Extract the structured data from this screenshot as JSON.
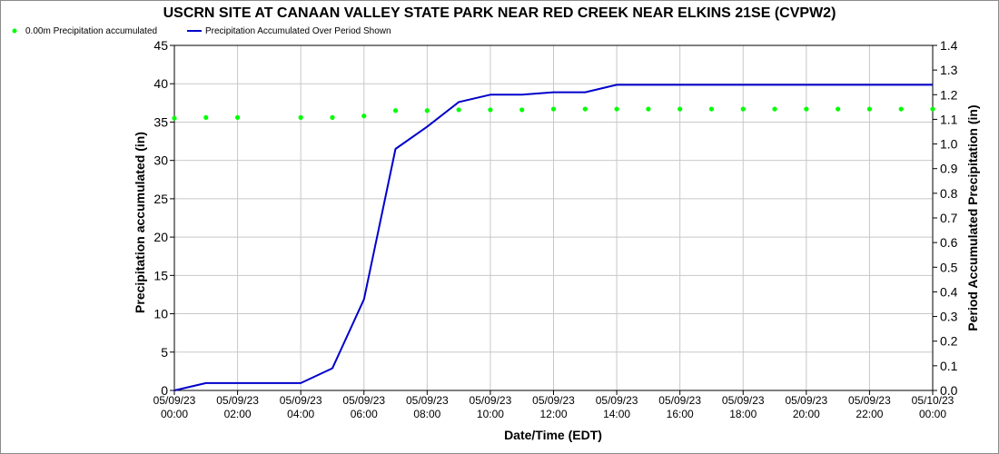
{
  "chart_data": {
    "type": "line",
    "title": "USCRN SITE AT CANAAN VALLEY STATE PARK NEAR RED CREEK NEAR ELKINS 21SE (CVPW2)",
    "xlabel": "Date/Time (EDT)",
    "ylabel_left": "Precipitation accumulated (in)",
    "ylabel_right": "Period Accumulated Precipitation (in)",
    "ylim_left": [
      0,
      45
    ],
    "ylim_right": [
      0,
      1.4
    ],
    "yticks_left": [
      "0",
      "5",
      "10",
      "15",
      "20",
      "25",
      "30",
      "35",
      "40",
      "45"
    ],
    "yticks_right": [
      "0.0",
      "0.1",
      "0.2",
      "0.3",
      "0.4",
      "0.5",
      "0.6",
      "0.7",
      "0.8",
      "0.9",
      "1.0",
      "1.1",
      "1.2",
      "1.3",
      "1.4"
    ],
    "xlim_hours": [
      0,
      24
    ],
    "xticks": [
      {
        "date": "05/09/23",
        "time": "00:00"
      },
      {
        "date": "05/09/23",
        "time": "02:00"
      },
      {
        "date": "05/09/23",
        "time": "04:00"
      },
      {
        "date": "05/09/23",
        "time": "06:00"
      },
      {
        "date": "05/09/23",
        "time": "08:00"
      },
      {
        "date": "05/09/23",
        "time": "10:00"
      },
      {
        "date": "05/09/23",
        "time": "12:00"
      },
      {
        "date": "05/09/23",
        "time": "14:00"
      },
      {
        "date": "05/09/23",
        "time": "16:00"
      },
      {
        "date": "05/09/23",
        "time": "18:00"
      },
      {
        "date": "05/09/23",
        "time": "20:00"
      },
      {
        "date": "05/09/23",
        "time": "22:00"
      },
      {
        "date": "05/10/23",
        "time": "00:00"
      }
    ],
    "grid": true,
    "legend_position": "top-left",
    "series": [
      {
        "name": "0.00m Precipitation accumulated",
        "axis": "left",
        "style": "points",
        "color": "#00ff00",
        "x_hours": [
          0,
          1,
          2,
          4,
          5,
          6,
          7,
          8,
          9,
          10,
          11,
          12,
          13,
          14,
          15,
          16,
          17,
          18,
          19,
          20,
          21,
          22,
          23,
          24
        ],
        "values": [
          35.5,
          35.6,
          35.6,
          35.6,
          35.6,
          35.8,
          36.5,
          36.5,
          36.6,
          36.6,
          36.6,
          36.7,
          36.7,
          36.7,
          36.7,
          36.7,
          36.7,
          36.7,
          36.7,
          36.7,
          36.7,
          36.7,
          36.7,
          36.7
        ]
      },
      {
        "name": "Precipitation Accumulated Over Period Shown",
        "axis": "right",
        "style": "line",
        "color": "#0000cc",
        "x_hours": [
          0,
          1,
          2,
          3,
          4,
          5,
          6,
          7,
          8,
          9,
          10,
          11,
          12,
          13,
          14,
          15,
          16,
          17,
          18,
          19,
          20,
          21,
          22,
          23,
          24
        ],
        "values": [
          0.0,
          0.03,
          0.03,
          0.03,
          0.03,
          0.09,
          0.37,
          0.98,
          1.07,
          1.17,
          1.2,
          1.2,
          1.21,
          1.21,
          1.24,
          1.24,
          1.24,
          1.24,
          1.24,
          1.24,
          1.24,
          1.24,
          1.24,
          1.24,
          1.24
        ]
      }
    ]
  }
}
